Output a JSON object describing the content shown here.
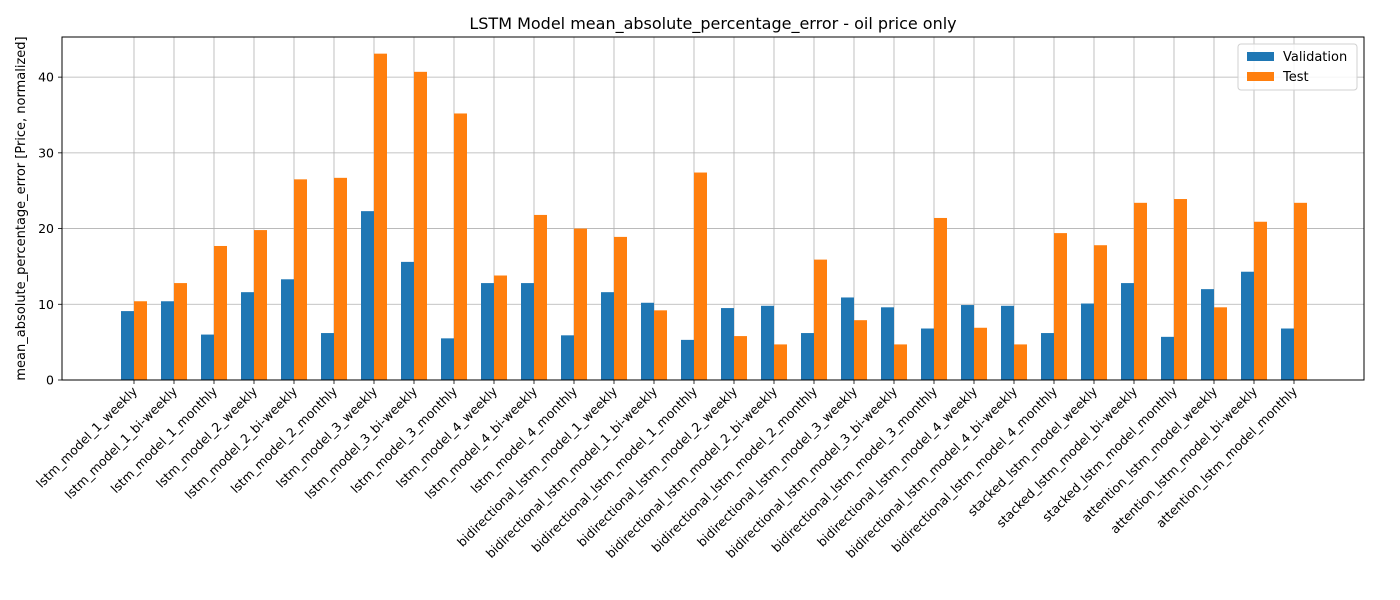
{
  "chart_data": {
    "type": "bar",
    "title": "LSTM Model mean_absolute_percentage_error - oil price only",
    "xlabel": "",
    "ylabel": "mean_absolute_percentage_error [Price, normalized]",
    "ylim": [
      0,
      45.3
    ],
    "yticks": [
      0,
      10,
      20,
      30,
      40
    ],
    "grid": true,
    "legend_position": "top-right",
    "categories": [
      "lstm_model_1_weekly",
      "lstm_model_1_bi-weekly",
      "lstm_model_1_monthly",
      "lstm_model_2_weekly",
      "lstm_model_2_bi-weekly",
      "lstm_model_2_monthly",
      "lstm_model_3_weekly",
      "lstm_model_3_bi-weekly",
      "lstm_model_3_monthly",
      "lstm_model_4_weekly",
      "lstm_model_4_bi-weekly",
      "lstm_model_4_monthly",
      "bidirectional_lstm_model_1_weekly",
      "bidirectional_lstm_model_1_bi-weekly",
      "bidirectional_lstm_model_1_monthly",
      "bidirectional_lstm_model_2_weekly",
      "bidirectional_lstm_model_2_bi-weekly",
      "bidirectional_lstm_model_2_monthly",
      "bidirectional_lstm_model_3_weekly",
      "bidirectional_lstm_model_3_bi-weekly",
      "bidirectional_lstm_model_3_monthly",
      "bidirectional_lstm_model_4_weekly",
      "bidirectional_lstm_model_4_bi-weekly",
      "bidirectional_lstm_model_4_monthly",
      "stacked_lstm_model_weekly",
      "stacked_lstm_model_bi-weekly",
      "stacked_lstm_model_monthly",
      "attention_lstm_model_weekly",
      "attention_lstm_model_bi-weekly",
      "attention_lstm_model_monthly"
    ],
    "series": [
      {
        "name": "Validation",
        "color": "#1f77b4",
        "values": [
          9.1,
          10.4,
          6.0,
          11.6,
          13.3,
          6.2,
          22.3,
          15.6,
          5.5,
          12.8,
          12.8,
          5.9,
          11.6,
          10.2,
          5.3,
          9.5,
          9.8,
          6.2,
          10.9,
          9.6,
          6.8,
          9.9,
          9.8,
          6.2,
          10.1,
          12.8,
          5.7,
          12.0,
          14.3,
          6.8
        ]
      },
      {
        "name": "Test",
        "color": "#ff7f0e",
        "values": [
          10.4,
          12.8,
          17.7,
          19.8,
          26.5,
          26.7,
          43.1,
          40.7,
          35.2,
          13.8,
          21.8,
          20.0,
          18.9,
          9.2,
          27.4,
          5.8,
          4.7,
          15.9,
          7.9,
          4.7,
          21.4,
          6.9,
          4.7,
          19.4,
          17.8,
          23.4,
          23.9,
          9.6,
          20.9,
          23.4
        ]
      }
    ]
  }
}
